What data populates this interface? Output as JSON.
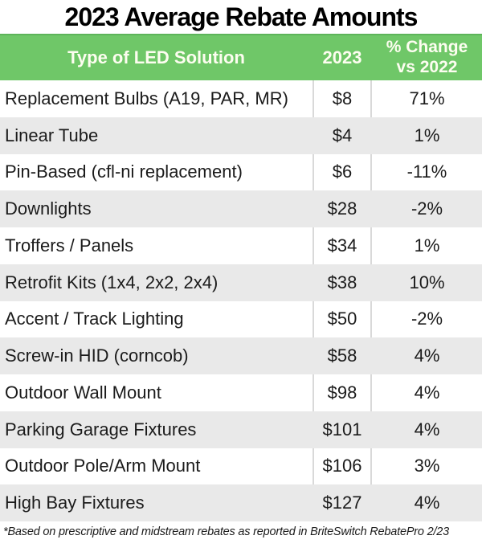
{
  "title": "2023 Average Rebate Amounts",
  "table": {
    "columns": [
      {
        "label": "Type of LED Solution"
      },
      {
        "label": "2023"
      },
      {
        "label": "% Change\nvs 2022"
      }
    ],
    "rows": [
      {
        "type": "Replacement Bulbs (A19, PAR, MR)",
        "amount": "$8",
        "change": "71%"
      },
      {
        "type": "Linear Tube",
        "amount": "$4",
        "change": "1%"
      },
      {
        "type": "Pin-Based (cfl-ni replacement)",
        "amount": "$6",
        "change": "-11%"
      },
      {
        "type": "Downlights",
        "amount": "$28",
        "change": "-2%"
      },
      {
        "type": "Troffers / Panels",
        "amount": "$34",
        "change": "1%"
      },
      {
        "type": "Retrofit Kits (1x4, 2x2, 2x4)",
        "amount": "$38",
        "change": "10%"
      },
      {
        "type": "Accent / Track Lighting",
        "amount": "$50",
        "change": "-2%"
      },
      {
        "type": "Screw-in HID (corncob)",
        "amount": "$58",
        "change": "4%"
      },
      {
        "type": "Outdoor Wall Mount",
        "amount": "$98",
        "change": "4%"
      },
      {
        "type": "Parking Garage Fixtures",
        "amount": "$101",
        "change": "4%"
      },
      {
        "type": "Outdoor Pole/Arm Mount",
        "amount": "$106",
        "change": "3%"
      },
      {
        "type": "High Bay Fixtures",
        "amount": "$127",
        "change": "4%"
      }
    ]
  },
  "footnote": "*Based on prescriptive and midstream rebates as reported in BriteSwitch RebatePro 2/23",
  "colors": {
    "header_green": "#6fc768",
    "header_green_top_edge": "#5db45a",
    "header_text": "#fdfdf0",
    "row_alt_gray": "#e9e9e9",
    "divider_gray": "#d9d9d9",
    "body_text": "#1b1b1b"
  },
  "chart_data": {
    "type": "table",
    "title": "2023 Average Rebate Amounts",
    "columns": [
      "Type of LED Solution",
      "2023",
      "% Change vs 2022"
    ],
    "categories": [
      "Replacement Bulbs (A19, PAR, MR)",
      "Linear Tube",
      "Pin-Based (cfl-ni replacement)",
      "Downlights",
      "Troffers / Panels",
      "Retrofit Kits (1x4, 2x2, 2x4)",
      "Accent / Track Lighting",
      "Screw-in HID (corncob)",
      "Outdoor Wall Mount",
      "Parking Garage Fixtures",
      "Outdoor Pole/Arm Mount",
      "High Bay Fixtures"
    ],
    "series": [
      {
        "name": "2023 average rebate (USD)",
        "values": [
          8,
          4,
          6,
          28,
          34,
          38,
          50,
          58,
          98,
          101,
          106,
          127
        ]
      },
      {
        "name": "% change vs 2022",
        "values": [
          71,
          1,
          -11,
          -2,
          1,
          10,
          -2,
          4,
          4,
          4,
          3,
          4
        ]
      }
    ],
    "footnote": "*Based on prescriptive and midstream rebates as reported in BriteSwitch RebatePro 2/23"
  }
}
